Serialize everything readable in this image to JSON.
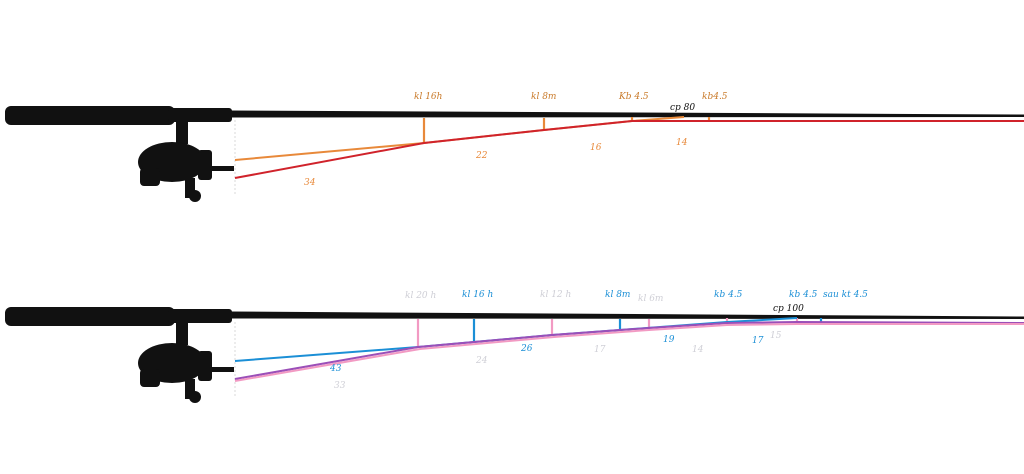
{
  "colors": {
    "rod": "#111111",
    "orange": "#e8893a",
    "red": "#d0232b",
    "brown": "#c97a2a",
    "blue": "#1b8fd6",
    "pink": "#f29ac3",
    "purple": "#9b4fb8",
    "lightgray": "#cfcfd6",
    "darktext": "#111111"
  },
  "icons": [
    "spinning-reel-icon",
    "rod-handle-icon"
  ],
  "top": {
    "guide_labels": [
      "kl 16h",
      "kl 8m",
      "Kb 4.5",
      "kb4.5"
    ],
    "cp_label": "cp 80",
    "line_labels": [
      "22",
      "16",
      "14",
      "34"
    ]
  },
  "bottom": {
    "guide_labels": [
      "kl 20 h",
      "kl 16 h",
      "kl 12 h",
      "kl  8m",
      "kl 6m",
      "kb 4.5",
      "kb 4.5",
      "sau kt 4.5"
    ],
    "cp_label": "cp 100",
    "line_labels": [
      "43",
      "33",
      "24",
      "26",
      "17",
      "19",
      "14",
      "17",
      "15"
    ]
  }
}
